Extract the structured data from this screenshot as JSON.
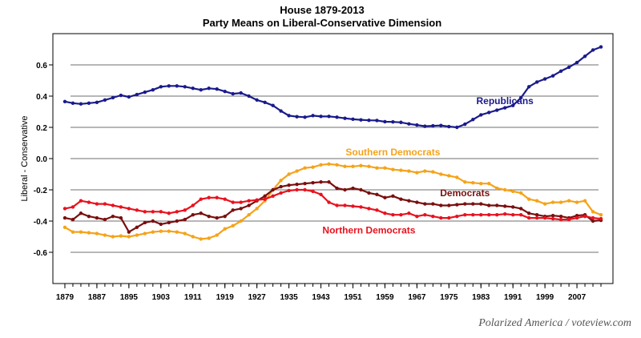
{
  "chart_data": {
    "type": "line",
    "title": "House 1879-2013",
    "subtitle": "Party Means on Liberal-Conservative Dimension",
    "xlabel": "",
    "ylabel": "Liberal - Conservative",
    "xlim": [
      1876,
      2016
    ],
    "ylim": [
      -0.8,
      0.8
    ],
    "x_ticks": [
      1879,
      1887,
      1895,
      1903,
      1911,
      1919,
      1927,
      1935,
      1943,
      1951,
      1959,
      1967,
      1975,
      1983,
      1991,
      1999,
      2007
    ],
    "y_ticks": [
      -0.6,
      -0.4,
      -0.2,
      0.0,
      0.2,
      0.4,
      0.6
    ],
    "y_tick_labels": [
      "-0.6",
      "-0.4",
      "-0.2",
      "0.0",
      "0.2",
      "0.4",
      "0.6"
    ],
    "grid": true,
    "x": [
      1879,
      1881,
      1883,
      1885,
      1887,
      1889,
      1891,
      1893,
      1895,
      1897,
      1899,
      1901,
      1903,
      1905,
      1907,
      1909,
      1911,
      1913,
      1915,
      1917,
      1919,
      1921,
      1923,
      1925,
      1927,
      1929,
      1931,
      1933,
      1935,
      1937,
      1939,
      1941,
      1943,
      1945,
      1947,
      1949,
      1951,
      1953,
      1955,
      1957,
      1959,
      1961,
      1963,
      1965,
      1967,
      1969,
      1971,
      1973,
      1975,
      1977,
      1979,
      1981,
      1983,
      1985,
      1987,
      1989,
      1991,
      1993,
      1995,
      1997,
      1999,
      2001,
      2003,
      2005,
      2007,
      2009,
      2011,
      2013
    ],
    "series": [
      {
        "name": "Republicans",
        "color": "#1a1a8c",
        "values": [
          0.365,
          0.355,
          0.35,
          0.355,
          0.36,
          0.375,
          0.39,
          0.405,
          0.395,
          0.41,
          0.425,
          0.44,
          0.46,
          0.465,
          0.465,
          0.46,
          0.45,
          0.44,
          0.45,
          0.445,
          0.43,
          0.415,
          0.42,
          0.4,
          0.375,
          0.36,
          0.34,
          0.305,
          0.275,
          0.268,
          0.265,
          0.275,
          0.27,
          0.27,
          0.265,
          0.258,
          0.252,
          0.248,
          0.245,
          0.244,
          0.236,
          0.235,
          0.232,
          0.222,
          0.215,
          0.207,
          0.21,
          0.212,
          0.205,
          0.2,
          0.22,
          0.25,
          0.28,
          0.295,
          0.31,
          0.325,
          0.34,
          0.39,
          0.46,
          0.49,
          0.51,
          0.53,
          0.56,
          0.585,
          0.615,
          0.655,
          0.695,
          0.715
        ]
      },
      {
        "name": "Southern Democrats",
        "color": "#f5a31a",
        "values": [
          -0.44,
          -0.47,
          -0.47,
          -0.475,
          -0.48,
          -0.49,
          -0.5,
          -0.495,
          -0.5,
          -0.49,
          -0.48,
          -0.47,
          -0.465,
          -0.465,
          -0.47,
          -0.48,
          -0.5,
          -0.515,
          -0.51,
          -0.49,
          -0.45,
          -0.43,
          -0.4,
          -0.36,
          -0.32,
          -0.27,
          -0.2,
          -0.14,
          -0.1,
          -0.08,
          -0.06,
          -0.055,
          -0.04,
          -0.035,
          -0.04,
          -0.05,
          -0.05,
          -0.045,
          -0.05,
          -0.06,
          -0.06,
          -0.07,
          -0.075,
          -0.08,
          -0.09,
          -0.08,
          -0.085,
          -0.1,
          -0.11,
          -0.12,
          -0.15,
          -0.155,
          -0.16,
          -0.16,
          -0.19,
          -0.2,
          -0.21,
          -0.22,
          -0.26,
          -0.27,
          -0.29,
          -0.28,
          -0.28,
          -0.27,
          -0.28,
          -0.27,
          -0.34,
          -0.36
        ]
      },
      {
        "name": "Democrats",
        "color": "#7a0f0f",
        "values": [
          -0.38,
          -0.39,
          -0.35,
          -0.37,
          -0.38,
          -0.39,
          -0.37,
          -0.38,
          -0.47,
          -0.44,
          -0.41,
          -0.4,
          -0.42,
          -0.41,
          -0.4,
          -0.39,
          -0.36,
          -0.35,
          -0.37,
          -0.38,
          -0.37,
          -0.33,
          -0.32,
          -0.3,
          -0.27,
          -0.24,
          -0.2,
          -0.18,
          -0.17,
          -0.165,
          -0.16,
          -0.155,
          -0.15,
          -0.15,
          -0.19,
          -0.2,
          -0.19,
          -0.2,
          -0.22,
          -0.23,
          -0.25,
          -0.24,
          -0.26,
          -0.27,
          -0.28,
          -0.29,
          -0.29,
          -0.3,
          -0.3,
          -0.295,
          -0.29,
          -0.29,
          -0.29,
          -0.3,
          -0.3,
          -0.305,
          -0.31,
          -0.32,
          -0.35,
          -0.36,
          -0.37,
          -0.365,
          -0.37,
          -0.38,
          -0.365,
          -0.36,
          -0.4,
          -0.395
        ]
      },
      {
        "name": "Northern Democrats",
        "color": "#e8121e",
        "values": [
          -0.32,
          -0.31,
          -0.27,
          -0.28,
          -0.29,
          -0.29,
          -0.3,
          -0.31,
          -0.32,
          -0.33,
          -0.34,
          -0.34,
          -0.34,
          -0.35,
          -0.34,
          -0.33,
          -0.3,
          -0.26,
          -0.25,
          -0.25,
          -0.26,
          -0.28,
          -0.28,
          -0.27,
          -0.265,
          -0.26,
          -0.24,
          -0.22,
          -0.205,
          -0.2,
          -0.2,
          -0.21,
          -0.23,
          -0.28,
          -0.3,
          -0.3,
          -0.305,
          -0.31,
          -0.32,
          -0.33,
          -0.35,
          -0.36,
          -0.36,
          -0.35,
          -0.37,
          -0.36,
          -0.37,
          -0.38,
          -0.38,
          -0.37,
          -0.36,
          -0.36,
          -0.36,
          -0.36,
          -0.36,
          -0.355,
          -0.36,
          -0.36,
          -0.38,
          -0.38,
          -0.38,
          -0.385,
          -0.39,
          -0.39,
          -0.38,
          -0.37,
          -0.38,
          -0.385
        ]
      }
    ],
    "annotations": [
      {
        "text": "Republicans",
        "series": "Republicans",
        "x": 1989,
        "y": 0.35
      },
      {
        "text": "Southern Democrats",
        "series": "Southern Democrats",
        "x": 1961,
        "y": 0.02
      },
      {
        "text": "Democrats",
        "series": "Democrats",
        "x": 1979,
        "y": -0.24
      },
      {
        "text": "Northern Democrats",
        "series": "Northern Democrats",
        "x": 1955,
        "y": -0.48
      }
    ]
  },
  "credit": "Polarized America / voteview.com"
}
